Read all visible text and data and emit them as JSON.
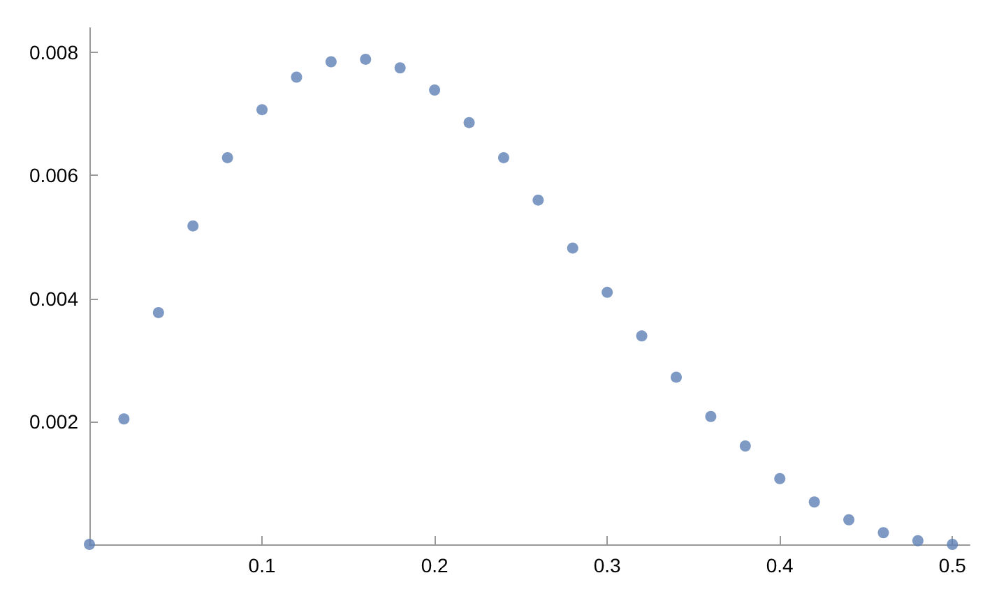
{
  "chart_data": {
    "type": "scatter",
    "x": [
      0,
      0.02,
      0.04,
      0.06,
      0.08,
      0.1,
      0.12,
      0.14,
      0.16,
      0.18,
      0.2,
      0.22,
      0.24,
      0.26,
      0.28,
      0.3,
      0.32,
      0.34,
      0.36,
      0.38,
      0.4,
      0.42,
      0.44,
      0.46,
      0.48,
      0.5
    ],
    "series": [
      {
        "color": "#5e81b5",
        "values": [
          0,
          0.00204,
          0.00377,
          0.00518,
          0.00629,
          0.00707,
          0.0076,
          0.00785,
          0.00789,
          0.00775,
          0.00739,
          0.00686,
          0.00629,
          0.0056,
          0.00482,
          0.0041,
          0.00339,
          0.00272,
          0.00208,
          0.0016,
          0.00107,
          0.00069,
          0.0004,
          0.00019,
          6e-05,
          0
        ]
      }
    ],
    "xlim": [
      0,
      0.51
    ],
    "ylim": [
      0,
      0.0084
    ],
    "xticks": [
      0.1,
      0.2,
      0.3,
      0.4,
      0.5
    ],
    "yticks": [
      0.002,
      0.004,
      0.006,
      0.008
    ],
    "grid": false,
    "marker": "circle"
  }
}
